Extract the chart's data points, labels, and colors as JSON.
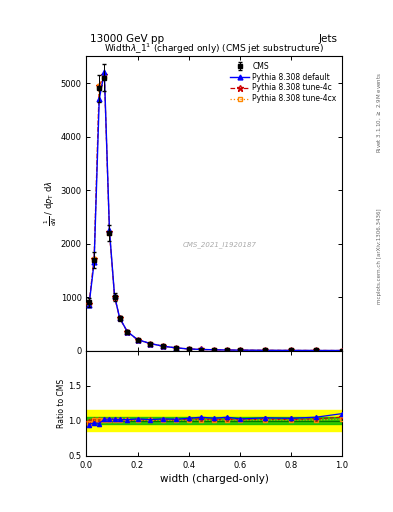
{
  "title": "Width$\\lambda$_1$^1$ (charged only) (CMS jet substructure)",
  "header_left": "13000 GeV pp",
  "header_right": "Jets",
  "xlabel": "width (charged-only)",
  "ylabel_ratio": "Ratio to CMS",
  "watermark": "CMS_2021_I1920187",
  "side_text_top": "Rivet 3.1.10, $\\geq$ 2.9M events",
  "side_text_bottom": "mcplots.cern.ch [arXiv:1306.3436]",
  "x_data": [
    0.01,
    0.03,
    0.05,
    0.07,
    0.09,
    0.11,
    0.13,
    0.16,
    0.2,
    0.25,
    0.3,
    0.35,
    0.4,
    0.45,
    0.5,
    0.55,
    0.6,
    0.7,
    0.8,
    0.9,
    1.0
  ],
  "cms_y": [
    900,
    1700,
    4900,
    5100,
    2200,
    1000,
    600,
    350,
    200,
    130,
    80,
    50,
    30,
    20,
    15,
    10,
    8,
    5,
    3,
    2,
    1
  ],
  "cms_yerr": [
    80,
    150,
    250,
    250,
    150,
    80,
    50,
    30,
    18,
    11,
    7,
    4,
    3,
    2,
    1.5,
    1,
    0.8,
    0.6,
    0.4,
    0.3,
    0.2
  ],
  "pythia_default_y": [
    850,
    1650,
    4700,
    5200,
    2250,
    1020,
    610,
    355,
    205,
    132,
    82,
    51,
    31,
    21,
    15.5,
    10.5,
    8.2,
    5.2,
    3.1,
    2.1,
    1.1
  ],
  "pythia_4c_y": [
    880,
    1720,
    4950,
    5150,
    2210,
    1010,
    605,
    352,
    202,
    131,
    81,
    50.5,
    30.5,
    20.5,
    15.2,
    10.2,
    8.1,
    5.1,
    3.05,
    2.05,
    1.05
  ],
  "pythia_4cx_y": [
    870,
    1710,
    4940,
    5130,
    2205,
    1008,
    603,
    351,
    201,
    130.5,
    80.5,
    50.2,
    30.2,
    20.2,
    15.1,
    10.1,
    8.05,
    5.05,
    3.02,
    2.02,
    1.02
  ],
  "ratio_green_half": 0.05,
  "ratio_yellow_half": 0.15,
  "main_ylim": [
    0,
    5500
  ],
  "main_yticks": [
    0,
    1000,
    2000,
    3000,
    4000,
    5000
  ],
  "ratio_ylim": [
    0.5,
    2.0
  ],
  "ratio_yticks": [
    0.5,
    1.0,
    1.5,
    2.0
  ],
  "xlim": [
    0.0,
    1.0
  ],
  "bg_color": "#ffffff",
  "cms_color": "#000000",
  "py_default_color": "#0000ff",
  "py_4c_color": "#cc0000",
  "py_4cx_color": "#ff8800",
  "green_color": "#00bb00",
  "yellow_color": "#ffff00",
  "ratio_line_color": "#007700"
}
